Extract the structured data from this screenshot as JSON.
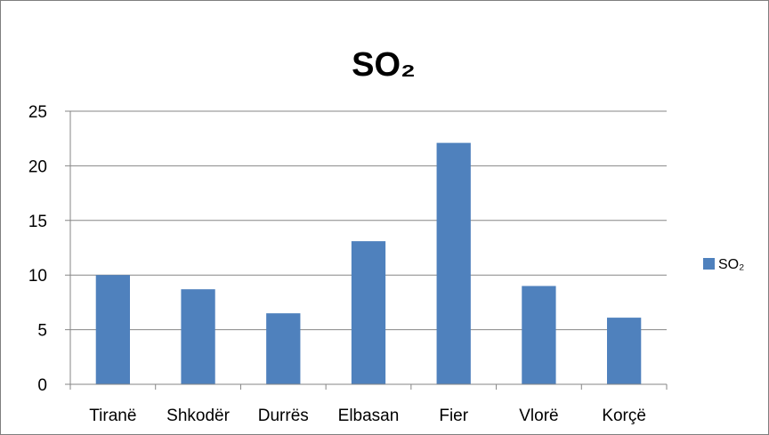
{
  "chart_data": {
    "type": "bar",
    "title": "SO₂",
    "xlabel": "",
    "ylabel": "",
    "categories": [
      "Tiranë",
      "Shkodër",
      "Durrës",
      "Elbasan",
      "Fier",
      "Vlorë",
      "Korçë"
    ],
    "series": [
      {
        "name": "SO₂",
        "values": [
          10,
          8.7,
          6.5,
          13.1,
          22.1,
          9.0,
          6.1
        ],
        "color": "#4f81bd"
      }
    ],
    "ylim": [
      0,
      25
    ],
    "yticks": [
      "0",
      "5",
      "10",
      "15",
      "20",
      "25"
    ],
    "grid": true,
    "legend_position": "right"
  }
}
